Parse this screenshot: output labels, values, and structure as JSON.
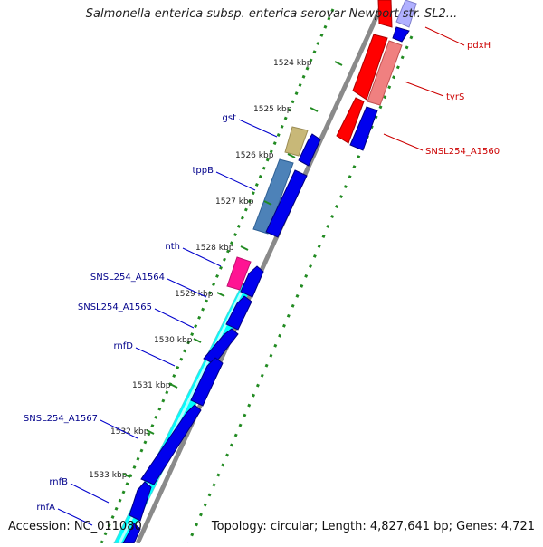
{
  "title": "Salmonella enterica subsp. enterica serovar Newport str. SL2...",
  "footer": {
    "accession": "Accession: NC_011080",
    "topology": "Topology: circular; Length: 4,827,641 bp; Genes: 4,721"
  },
  "colors": {
    "forward_gene": "#0000ee",
    "reverse_gene": "#ee0000",
    "gene_label_left": "#00008b",
    "gene_label_right": "#cc0000",
    "tick_mark": "#228b22",
    "backbone": "#8a8a8a"
  },
  "ticks": [
    {
      "label": "1524 kbp"
    },
    {
      "label": "1525 kbp"
    },
    {
      "label": "1526 kbp"
    },
    {
      "label": "1527 kbp"
    },
    {
      "label": "1528 kbp"
    },
    {
      "label": "1529 kbp"
    },
    {
      "label": "1530 kbp"
    },
    {
      "label": "1531 kbp"
    },
    {
      "label": "1532 kbp"
    },
    {
      "label": "1533 kbp"
    }
  ],
  "gene_labels_left": [
    {
      "label": "gst"
    },
    {
      "label": "tppB"
    },
    {
      "label": "nth"
    },
    {
      "label": "SNSL254_A1564"
    },
    {
      "label": "SNSL254_A1565"
    },
    {
      "label": "rnfD"
    },
    {
      "label": "SNSL254_A1567"
    },
    {
      "label": "rnfB"
    },
    {
      "label": "rnfA"
    }
  ],
  "gene_labels_right": [
    {
      "label": "pdxH"
    },
    {
      "label": "tyrS"
    },
    {
      "label": "SNSL254_A1560"
    }
  ]
}
